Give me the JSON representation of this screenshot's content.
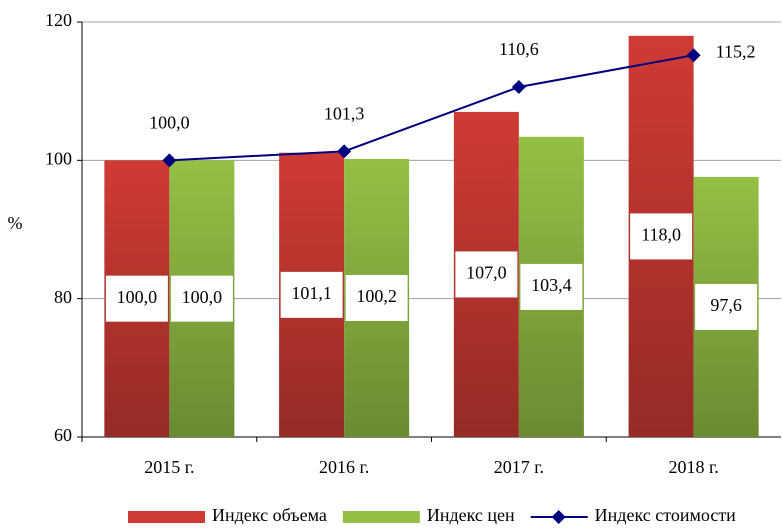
{
  "chart_data": {
    "type": "bar_line",
    "categories": [
      "2015 г.",
      "2016 г.",
      "2017 г.",
      "2018 г."
    ],
    "y_label": "%",
    "ylim": [
      60,
      120
    ],
    "yticks": [
      60,
      80,
      100,
      120
    ],
    "grid": true,
    "series": [
      {
        "name": "Индекс объема",
        "type": "bar",
        "color": "#cf3b34",
        "values": [
          100.0,
          101.1,
          107.0,
          118.0
        ],
        "value_labels": [
          "100,0",
          "101,1",
          "107,0",
          "118,0"
        ]
      },
      {
        "name": "Индекс цен",
        "type": "bar",
        "color": "#94c045",
        "values": [
          100.0,
          100.2,
          103.4,
          97.6
        ],
        "value_labels": [
          "100,0",
          "100,2",
          "103,4",
          "97,6"
        ]
      },
      {
        "name": "Индекс стоимости",
        "type": "line",
        "color": "#000080",
        "values": [
          100.0,
          101.3,
          110.6,
          115.2
        ],
        "value_labels": [
          "100,0",
          "101,3",
          "110,6",
          "115,2"
        ]
      }
    ]
  }
}
